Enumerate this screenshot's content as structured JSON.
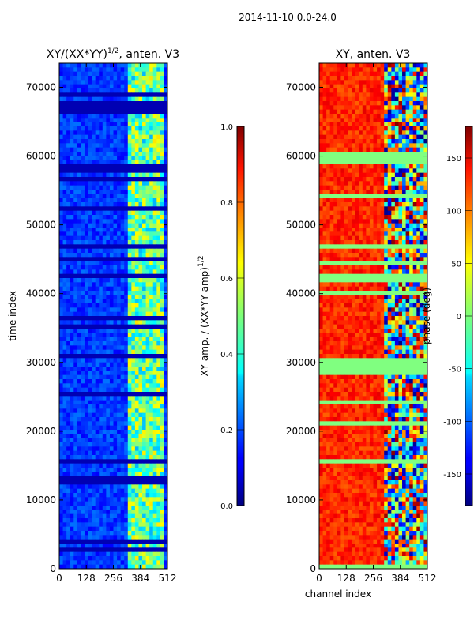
{
  "figure": {
    "suptitle": "2014-11-10 0.0-24.0"
  },
  "chart_data": [
    {
      "type": "heatmap",
      "title_main": "XY/(XX*YY)",
      "title_exp": "1/2",
      "title_rest": ", anten. V3",
      "xlabel": "",
      "ylabel": "time index",
      "xlim": [
        0,
        512
      ],
      "ylim": [
        0,
        73500
      ],
      "xticks": [
        0,
        128,
        256,
        384,
        512
      ],
      "yticks": [
        0,
        10000,
        20000,
        30000,
        40000,
        50000,
        60000,
        70000
      ],
      "colormap": "jet",
      "colorbar": {
        "label_main": "XY amp. / (XX*YY amp)",
        "label_exp": "1/2",
        "range": [
          0.0,
          1.0
        ],
        "ticks": [
          "0.0",
          "0.2",
          "0.4",
          "0.6",
          "0.8",
          "1.0"
        ]
      }
    },
    {
      "type": "heatmap",
      "title": "XY, anten. V3",
      "xlabel": "channel index",
      "ylabel": "",
      "xlim": [
        0,
        512
      ],
      "ylim": [
        0,
        73500
      ],
      "xticks": [
        0,
        128,
        256,
        384,
        512
      ],
      "yticks": [
        0,
        10000,
        20000,
        30000,
        40000,
        50000,
        60000,
        70000
      ],
      "colormap": "jet",
      "colorbar": {
        "label": "phase (deg)",
        "range": [
          -180,
          180
        ],
        "ticks": [
          "-150",
          "-100",
          "-50",
          "0",
          "50",
          "100",
          "150"
        ]
      }
    }
  ]
}
